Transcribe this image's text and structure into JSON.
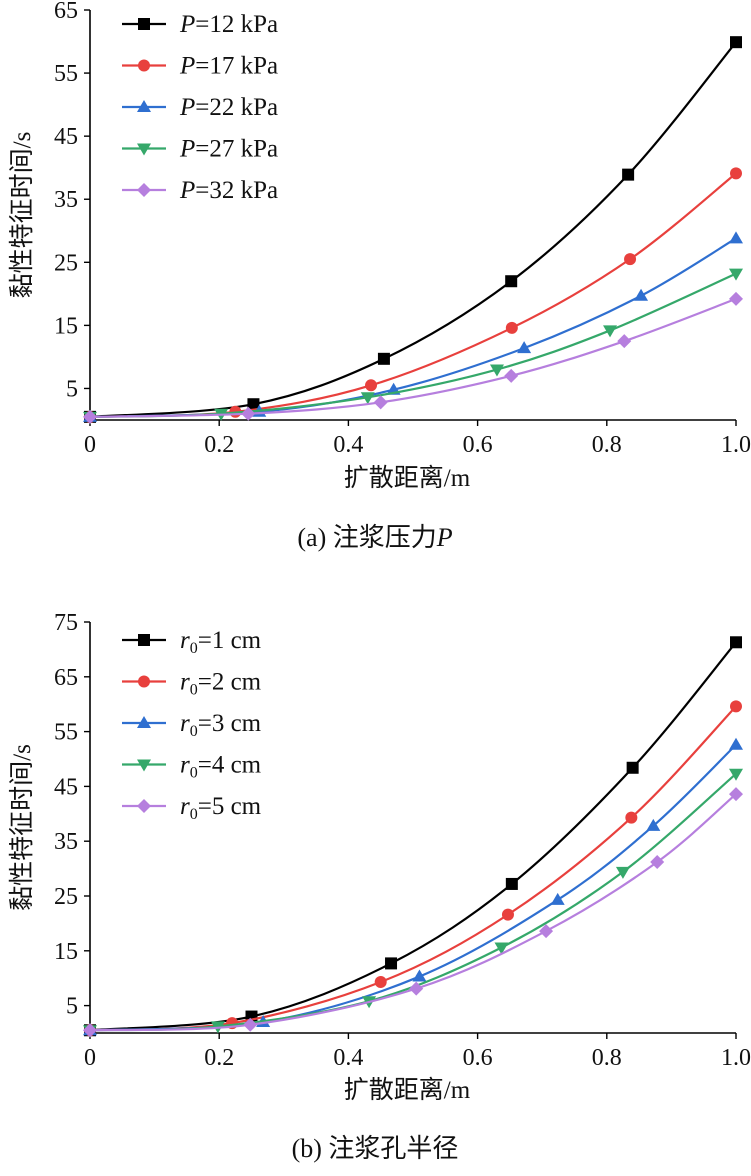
{
  "chart_data": [
    {
      "type": "line",
      "caption": "(a)  注浆压力P",
      "caption_prefix": "(a)  注浆压力",
      "caption_var": "P",
      "xlabel": "扩散距离/m",
      "ylabel": "黏性特征时间/s",
      "xlim": [
        0,
        1.0
      ],
      "ylim": [
        0,
        65
      ],
      "xticks": [
        0,
        0.2,
        0.4,
        0.6,
        0.8,
        1.0
      ],
      "xtick_labels": [
        "0",
        "0.2",
        "0.4",
        "0.6",
        "0.8",
        "1.0"
      ],
      "yticks": [
        5,
        15,
        25,
        35,
        45,
        55,
        65
      ],
      "ytick_labels": [
        "5",
        "15",
        "25",
        "35",
        "45",
        "55",
        "65"
      ],
      "legend_position": "top-left",
      "series": [
        {
          "name": "P=12 kPa",
          "legend_var": "P",
          "legend_rest": "=12 kPa",
          "color": "#000000",
          "marker": "square",
          "x": [
            0,
            0.253,
            0.455,
            0.652,
            0.833,
            1.0
          ],
          "y": [
            0.5,
            2.5,
            9.7,
            22.0,
            38.9,
            59.9
          ]
        },
        {
          "name": "P=17 kPa",
          "legend_var": "P",
          "legend_rest": "=17 kPa",
          "color": "#e8403d",
          "marker": "circle",
          "x": [
            0,
            0.225,
            0.435,
            0.653,
            0.836,
            1.0
          ],
          "y": [
            0.5,
            1.3,
            5.5,
            14.6,
            25.5,
            39.1
          ]
        },
        {
          "name": "P=22 kPa",
          "legend_var": "P",
          "legend_rest": "=22 kPa",
          "color": "#2f6fd0",
          "marker": "triangle-up",
          "x": [
            0,
            0.262,
            0.47,
            0.672,
            0.853,
            1.0
          ],
          "y": [
            0.5,
            1.3,
            4.8,
            11.4,
            19.7,
            28.8
          ]
        },
        {
          "name": "P=27 kPa",
          "legend_var": "P",
          "legend_rest": "=27 kPa",
          "color": "#35a86a",
          "marker": "triangle-down",
          "x": [
            0,
            0.203,
            0.43,
            0.63,
            0.805,
            1.0
          ],
          "y": [
            0.5,
            1.0,
            3.6,
            8.0,
            14.2,
            23.2
          ]
        },
        {
          "name": "P=32 kPa",
          "legend_var": "P",
          "legend_rest": "=32 kPa",
          "color": "#b67fde",
          "marker": "diamond",
          "x": [
            0,
            0.245,
            0.45,
            0.652,
            0.827,
            1.0
          ],
          "y": [
            0.5,
            1.0,
            2.8,
            7.0,
            12.5,
            19.2
          ]
        }
      ]
    },
    {
      "type": "line",
      "caption": "(b)  注浆孔半径",
      "caption_prefix": "(b)  注浆孔半径",
      "caption_var": "",
      "xlabel": "扩散距离/m",
      "ylabel": "黏性特征时间/s",
      "xlim": [
        0,
        1.0
      ],
      "ylim": [
        0,
        75
      ],
      "xticks": [
        0,
        0.2,
        0.4,
        0.6,
        0.8,
        1.0
      ],
      "xtick_labels": [
        "0",
        "0.2",
        "0.4",
        "0.6",
        "0.8",
        "1.0"
      ],
      "yticks": [
        5,
        15,
        25,
        35,
        45,
        55,
        65,
        75
      ],
      "ytick_labels": [
        "5",
        "15",
        "25",
        "35",
        "45",
        "55",
        "65",
        "75"
      ],
      "legend_position": "top-left",
      "series": [
        {
          "name": "r0=1 cm",
          "legend_var": "r",
          "legend_sub": "0",
          "legend_rest": "=1 cm",
          "color": "#000000",
          "marker": "square",
          "x": [
            0,
            0.25,
            0.466,
            0.653,
            0.84,
            1.0
          ],
          "y": [
            0.5,
            3.0,
            12.7,
            27.2,
            48.4,
            71.3
          ]
        },
        {
          "name": "r0=2 cm",
          "legend_var": "r",
          "legend_sub": "0",
          "legend_rest": "=2 cm",
          "color": "#e8403d",
          "marker": "circle",
          "x": [
            0,
            0.22,
            0.45,
            0.647,
            0.838,
            1.0
          ],
          "y": [
            0.5,
            1.8,
            9.3,
            21.6,
            39.3,
            59.6
          ]
        },
        {
          "name": "r0=3 cm",
          "legend_var": "r",
          "legend_sub": "0",
          "legend_rest": "=3 cm",
          "color": "#2f6fd0",
          "marker": "triangle-up",
          "x": [
            0,
            0.268,
            0.51,
            0.724,
            0.872,
            1.0
          ],
          "y": [
            0.5,
            2.0,
            10.3,
            24.3,
            37.8,
            52.6
          ]
        },
        {
          "name": "r0=4 cm",
          "legend_var": "r",
          "legend_sub": "0",
          "legend_rest": "=4 cm",
          "color": "#35a86a",
          "marker": "triangle-down",
          "x": [
            0,
            0.198,
            0.432,
            0.637,
            0.825,
            1.0
          ],
          "y": [
            0.5,
            1.2,
            5.8,
            15.6,
            29.4,
            47.3
          ]
        },
        {
          "name": "r0=5 cm",
          "legend_var": "r",
          "legend_sub": "0",
          "legend_rest": "=5 cm",
          "color": "#b67fde",
          "marker": "diamond",
          "x": [
            0,
            0.248,
            0.505,
            0.706,
            0.878,
            1.0
          ],
          "y": [
            0.5,
            1.5,
            8.1,
            18.6,
            31.2,
            43.6
          ]
        }
      ]
    }
  ]
}
